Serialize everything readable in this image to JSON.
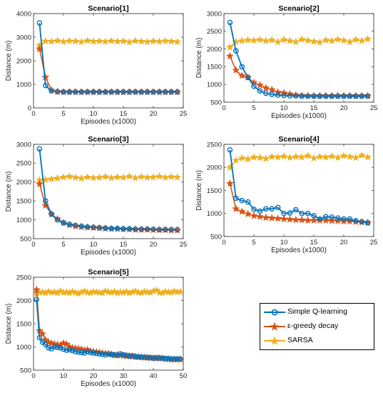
{
  "colors": {
    "q": "#0072BD",
    "eps": "#D95319",
    "sarsa": "#EDB120"
  },
  "legend": {
    "items": [
      {
        "label": "Simple Q-learning",
        "series": "q"
      },
      {
        "label": "ε-greedy decay",
        "series": "eps"
      },
      {
        "label": "SARSA",
        "series": "sarsa"
      }
    ]
  },
  "chart_data": [
    {
      "type": "line",
      "title": "Scenario[1]",
      "xlabel": "Episodes (x1000)",
      "ylabel": "Distance (m)",
      "xlim": [
        0,
        25
      ],
      "ylim": [
        0,
        4000
      ],
      "xticks": [
        0,
        5,
        10,
        15,
        20,
        25
      ],
      "yticks": [
        0,
        1000,
        2000,
        3000,
        4000
      ],
      "x": [
        1,
        2,
        3,
        4,
        5,
        6,
        7,
        8,
        9,
        10,
        11,
        12,
        13,
        14,
        15,
        16,
        17,
        18,
        19,
        20,
        21,
        22,
        23,
        24
      ],
      "series": [
        {
          "name": "Simple Q-learning",
          "key": "q",
          "values": [
            3600,
            950,
            720,
            690,
            680,
            680,
            680,
            680,
            680,
            680,
            680,
            680,
            680,
            680,
            680,
            680,
            680,
            680,
            680,
            680,
            680,
            680,
            680,
            680
          ]
        },
        {
          "name": "ε-greedy decay",
          "key": "eps",
          "values": [
            2500,
            1300,
            750,
            680,
            670,
            670,
            670,
            670,
            670,
            670,
            670,
            670,
            670,
            670,
            670,
            670,
            670,
            670,
            670,
            670,
            670,
            670,
            670,
            670
          ]
        },
        {
          "name": "SARSA",
          "key": "sarsa",
          "values": [
            2650,
            2830,
            2820,
            2850,
            2810,
            2840,
            2830,
            2800,
            2850,
            2820,
            2830,
            2810,
            2840,
            2820,
            2830,
            2790,
            2840,
            2820,
            2800,
            2830,
            2810,
            2840,
            2820,
            2800
          ]
        }
      ]
    },
    {
      "type": "line",
      "title": "Scenario[2]",
      "xlabel": "Episodes (x1000)",
      "ylabel": "Distance (m)",
      "xlim": [
        0,
        25
      ],
      "ylim": [
        500,
        3000
      ],
      "xticks": [
        0,
        5,
        10,
        15,
        20,
        25
      ],
      "yticks": [
        500,
        1000,
        1500,
        2000,
        2500,
        3000
      ],
      "x": [
        1,
        2,
        3,
        4,
        5,
        6,
        7,
        8,
        9,
        10,
        11,
        12,
        13,
        14,
        15,
        16,
        17,
        18,
        19,
        20,
        21,
        22,
        23,
        24
      ],
      "series": [
        {
          "name": "Simple Q-learning",
          "key": "q",
          "values": [
            2750,
            1950,
            1500,
            1200,
            950,
            820,
            750,
            720,
            700,
            690,
            680,
            680,
            670,
            670,
            670,
            670,
            670,
            670,
            670,
            670,
            670,
            670,
            670,
            670
          ]
        },
        {
          "name": "ε-greedy decay",
          "key": "eps",
          "values": [
            1800,
            1400,
            1250,
            1200,
            1050,
            980,
            900,
            850,
            780,
            760,
            730,
            700,
            690,
            680,
            680,
            680,
            680,
            680,
            680,
            680,
            680,
            680,
            680,
            680
          ]
        },
        {
          "name": "SARSA",
          "key": "sarsa",
          "values": [
            2050,
            2200,
            2230,
            2250,
            2240,
            2260,
            2230,
            2250,
            2200,
            2260,
            2230,
            2200,
            2270,
            2240,
            2210,
            2190,
            2250,
            2230,
            2270,
            2240,
            2200,
            2260,
            2230,
            2280
          ]
        }
      ]
    },
    {
      "type": "line",
      "title": "Scenario[3]",
      "xlabel": "Episodes (x1000)",
      "ylabel": "Distance (m)",
      "xlim": [
        0,
        25
      ],
      "ylim": [
        500,
        3000
      ],
      "xticks": [
        0,
        5,
        10,
        15,
        20,
        25
      ],
      "yticks": [
        500,
        1000,
        1500,
        2000,
        2500,
        3000
      ],
      "x": [
        1,
        2,
        3,
        4,
        5,
        6,
        7,
        8,
        9,
        10,
        11,
        12,
        13,
        14,
        15,
        16,
        17,
        18,
        19,
        20,
        21,
        22,
        23,
        24
      ],
      "series": [
        {
          "name": "Simple Q-learning",
          "key": "q",
          "values": [
            2880,
            1500,
            1150,
            1000,
            920,
            880,
            850,
            830,
            810,
            800,
            790,
            780,
            770,
            770,
            760,
            760,
            750,
            750,
            750,
            750,
            740,
            740,
            740,
            740
          ]
        },
        {
          "name": "ε-greedy decay",
          "key": "eps",
          "values": [
            1950,
            1380,
            1150,
            1020,
            920,
            860,
            830,
            810,
            800,
            790,
            780,
            770,
            760,
            760,
            750,
            750,
            740,
            740,
            740,
            730,
            730,
            730,
            720,
            720
          ]
        },
        {
          "name": "SARSA",
          "key": "sarsa",
          "values": [
            2050,
            2060,
            2080,
            2100,
            2130,
            2150,
            2120,
            2100,
            2130,
            2110,
            2120,
            2140,
            2110,
            2130,
            2120,
            2150,
            2110,
            2140,
            2120,
            2130,
            2150,
            2120,
            2140,
            2130
          ]
        }
      ]
    },
    {
      "type": "line",
      "title": "Scenario[4]",
      "xlabel": "Episodes (x1000)",
      "ylabel": "Distance (m)",
      "xlim": [
        0,
        25
      ],
      "ylim": [
        500,
        2500
      ],
      "xticks": [
        0,
        5,
        10,
        15,
        20,
        25
      ],
      "yticks": [
        500,
        1000,
        1500,
        2000,
        2500
      ],
      "x": [
        1,
        2,
        3,
        4,
        5,
        6,
        7,
        8,
        9,
        10,
        11,
        12,
        13,
        14,
        15,
        16,
        17,
        18,
        19,
        20,
        21,
        22,
        23,
        24
      ],
      "series": [
        {
          "name": "Simple Q-learning",
          "key": "q",
          "values": [
            2380,
            1330,
            1280,
            1250,
            1090,
            1050,
            1100,
            1100,
            1130,
            1000,
            1010,
            1080,
            1000,
            1000,
            950,
            880,
            930,
            920,
            900,
            880,
            880,
            840,
            820,
            800
          ]
        },
        {
          "name": "ε-greedy decay",
          "key": "eps",
          "values": [
            1650,
            1100,
            1040,
            990,
            950,
            930,
            910,
            900,
            890,
            880,
            870,
            860,
            860,
            850,
            850,
            850,
            850,
            840,
            840,
            830,
            830,
            820,
            810,
            800
          ]
        },
        {
          "name": "SARSA",
          "key": "sarsa",
          "values": [
            2000,
            2150,
            2200,
            2180,
            2220,
            2210,
            2190,
            2230,
            2220,
            2240,
            2210,
            2230,
            2220,
            2250,
            2200,
            2230,
            2220,
            2240,
            2210,
            2250,
            2230,
            2210,
            2260,
            2220
          ]
        }
      ]
    },
    {
      "type": "line",
      "title": "Scenario[5]",
      "xlabel": "Episodes (x1000)",
      "ylabel": "Distance (m)",
      "xlim": [
        0,
        50
      ],
      "ylim": [
        500,
        2500
      ],
      "xticks": [
        0,
        10,
        20,
        30,
        40,
        50
      ],
      "yticks": [
        500,
        1000,
        1500,
        2000,
        2500
      ],
      "x": [
        1,
        2,
        3,
        4,
        5,
        6,
        7,
        8,
        9,
        10,
        11,
        12,
        13,
        14,
        15,
        16,
        17,
        18,
        19,
        20,
        21,
        22,
        23,
        24,
        25,
        26,
        27,
        28,
        29,
        30,
        31,
        32,
        33,
        34,
        35,
        36,
        37,
        38,
        39,
        40,
        41,
        42,
        43,
        44,
        45,
        46,
        47,
        48,
        49
      ],
      "series": [
        {
          "name": "Simple Q-learning",
          "key": "q",
          "values": [
            2020,
            1200,
            1100,
            1050,
            980,
            960,
            1000,
            990,
            980,
            950,
            930,
            940,
            920,
            900,
            890,
            880,
            870,
            900,
            880,
            870,
            860,
            850,
            840,
            830,
            850,
            840,
            830,
            820,
            850,
            830,
            820,
            800,
            810,
            790,
            790,
            780,
            780,
            770,
            770,
            760,
            770,
            760,
            760,
            750,
            750,
            740,
            740,
            740,
            740
          ]
        },
        {
          "name": "ε-greedy decay",
          "key": "eps",
          "values": [
            2230,
            1350,
            1280,
            1150,
            1100,
            1080,
            1060,
            1050,
            1040,
            1080,
            1060,
            1000,
            980,
            970,
            960,
            950,
            930,
            940,
            910,
            900,
            890,
            880,
            870,
            860,
            850,
            840,
            820,
            830,
            820,
            810,
            800,
            810,
            790,
            790,
            780,
            780,
            770,
            770,
            760,
            760,
            750,
            760,
            750,
            740,
            740,
            730,
            730,
            730,
            730
          ]
        },
        {
          "name": "SARSA",
          "key": "sarsa",
          "values": [
            2150,
            2170,
            2180,
            2160,
            2190,
            2170,
            2180,
            2160,
            2200,
            2170,
            2180,
            2160,
            2190,
            2170,
            2150,
            2180,
            2200,
            2170,
            2160,
            2190,
            2180,
            2170,
            2160,
            2200,
            2180,
            2170,
            2190,
            2160,
            2180,
            2170,
            2190,
            2160,
            2180,
            2200,
            2170,
            2160,
            2190,
            2180,
            2170,
            2200,
            2220,
            2170,
            2160,
            2190,
            2180,
            2170,
            2200,
            2180,
            2190
          ]
        }
      ]
    }
  ]
}
